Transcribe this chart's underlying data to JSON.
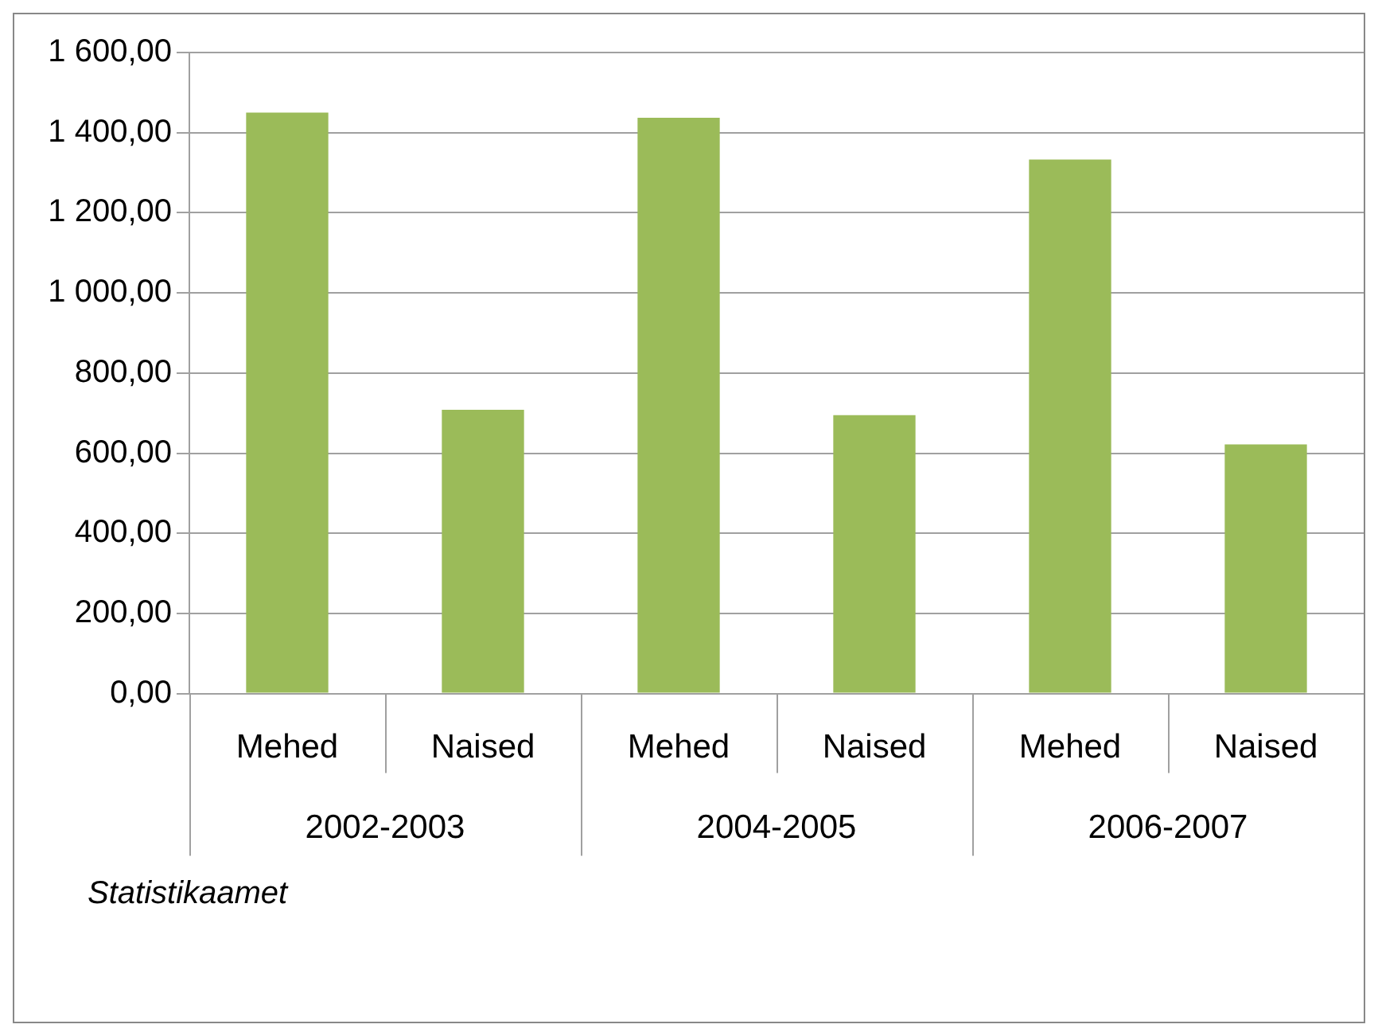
{
  "chart_data": {
    "type": "bar",
    "categories": [
      "Mehed",
      "Naised",
      "Mehed",
      "Naised",
      "Mehed",
      "Naised"
    ],
    "values": [
      1450,
      708,
      1437,
      695,
      1333,
      622
    ],
    "color": "#9bbb59",
    "ylim": [
      0,
      1600
    ],
    "yticks": [
      {
        "value": 0,
        "label": "0,00"
      },
      {
        "value": 200,
        "label": "200,00"
      },
      {
        "value": 400,
        "label": "400,00"
      },
      {
        "value": 600,
        "label": "600,00"
      },
      {
        "value": 800,
        "label": "800,00"
      },
      {
        "value": 1000,
        "label": "1 000,00"
      },
      {
        "value": 1200,
        "label": "1 200,00"
      },
      {
        "value": 1400,
        "label": "1 400,00"
      },
      {
        "value": 1600,
        "label": "1 600,00"
      }
    ],
    "grid": "y",
    "legend": false,
    "annotations": [
      "2002-2003",
      "2004-2005",
      "2006-2007",
      "Statistikaamet"
    ]
  }
}
